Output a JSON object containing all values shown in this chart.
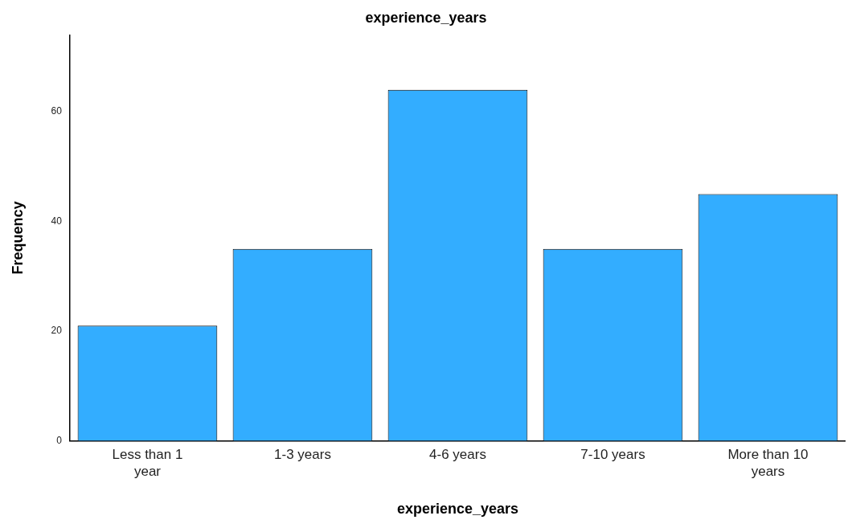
{
  "chart_data": {
    "type": "bar",
    "title": "experience_years",
    "xlabel": "experience_years",
    "ylabel": "Frequency",
    "categories": [
      "Less than 1 year",
      "1-3 years",
      "4-6 years",
      "7-10 years",
      "More than 10 years"
    ],
    "values": [
      21,
      35,
      64,
      35,
      45
    ],
    "color": "#33adff",
    "ylim": [
      0,
      74
    ],
    "yticks": [
      0,
      20,
      40,
      60
    ],
    "grid": false,
    "legend": false
  }
}
